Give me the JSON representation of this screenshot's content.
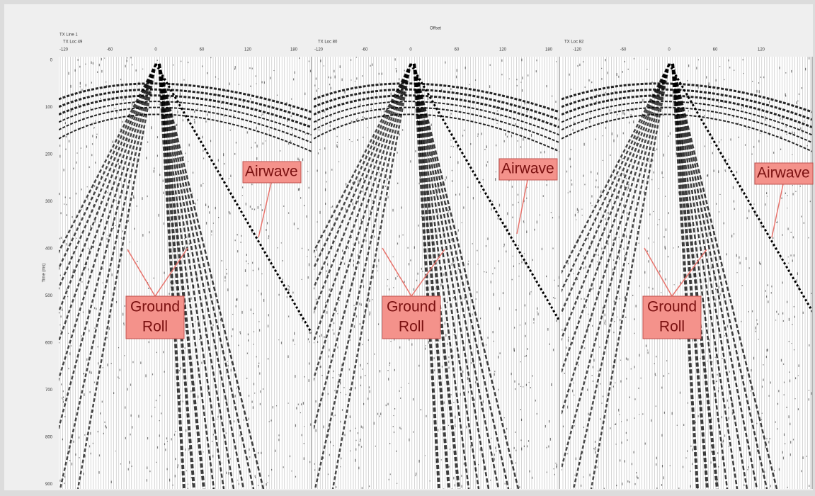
{
  "header": {
    "offset_label": "Offset",
    "line_label": "TX Line 1"
  },
  "y_axis": {
    "label": "Time (ms)",
    "ticks": [
      "0",
      "100",
      "200",
      "300",
      "400",
      "500",
      "600",
      "700",
      "800",
      "900"
    ]
  },
  "panels": [
    {
      "loc_label": "TX Loc 49",
      "ticks": [
        "-120",
        "-60",
        "0",
        "60",
        "120",
        "180"
      ],
      "annotations": {
        "ground_roll": [
          "Ground",
          "Roll"
        ],
        "airwave": "Airwave"
      }
    },
    {
      "loc_label": "TX Loc 80",
      "ticks": [
        "-120",
        "-60",
        "0",
        "60",
        "120",
        "180"
      ],
      "annotations": {
        "ground_roll": [
          "Ground",
          "Roll"
        ],
        "airwave": "Airwave"
      }
    },
    {
      "loc_label": "TX Loc 82",
      "ticks": [
        "-120",
        "-60",
        "0",
        "60",
        "120"
      ],
      "annotations": {
        "ground_roll": [
          "Ground",
          "Roll"
        ],
        "airwave": "Airwave"
      }
    }
  ]
}
